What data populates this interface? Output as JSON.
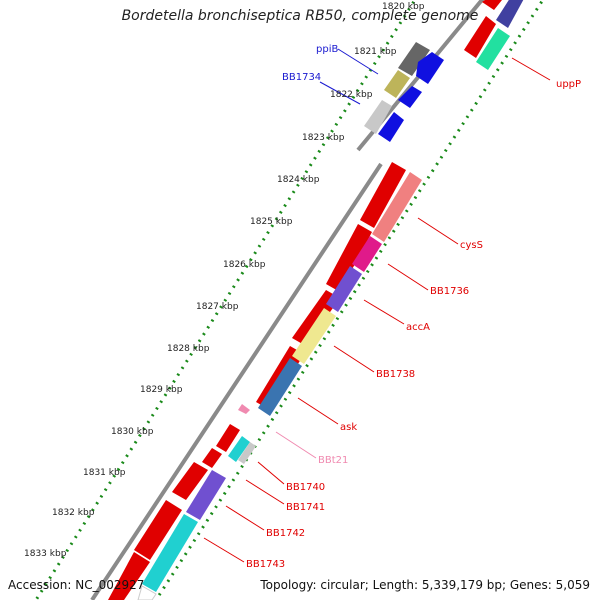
{
  "title": "Bordetella bronchiseptica RB50, complete genome",
  "accession": "Accession: NC_002927",
  "topology": "Topology: circular; Length: 5,339,179 bp; Genes: 5,059",
  "colors": {
    "backbone": "#888888",
    "ruler_dots": "#1a8a1a",
    "label_red": "#e00000",
    "label_blue": "#1a1ad0",
    "label_pink": "#f08ab0"
  },
  "ruler_ticks": [
    {
      "label": "1820 kbp"
    },
    {
      "label": "1821 kbp"
    },
    {
      "label": "1822 kbp"
    },
    {
      "label": "1823 kbp"
    },
    {
      "label": "1824 kbp"
    },
    {
      "label": "1825 kbp"
    },
    {
      "label": "1826 kbp"
    },
    {
      "label": "1827 kbp"
    },
    {
      "label": "1828 kbp"
    },
    {
      "label": "1829 kbp"
    },
    {
      "label": "1830 kbp"
    },
    {
      "label": "1831 kbp"
    },
    {
      "label": "1832 kbp"
    },
    {
      "label": "1833 kbp"
    }
  ],
  "gene_labels": [
    {
      "text": "ppiB"
    },
    {
      "text": "BB1734"
    },
    {
      "text": "uppP"
    },
    {
      "text": "cysS"
    },
    {
      "text": "BB1736"
    },
    {
      "text": "accA"
    },
    {
      "text": "BB1738"
    },
    {
      "text": "ask"
    },
    {
      "text": "BBt21"
    },
    {
      "text": "BB1740"
    },
    {
      "text": "BB1741"
    },
    {
      "text": "BB1742"
    },
    {
      "text": "BB1743"
    }
  ]
}
